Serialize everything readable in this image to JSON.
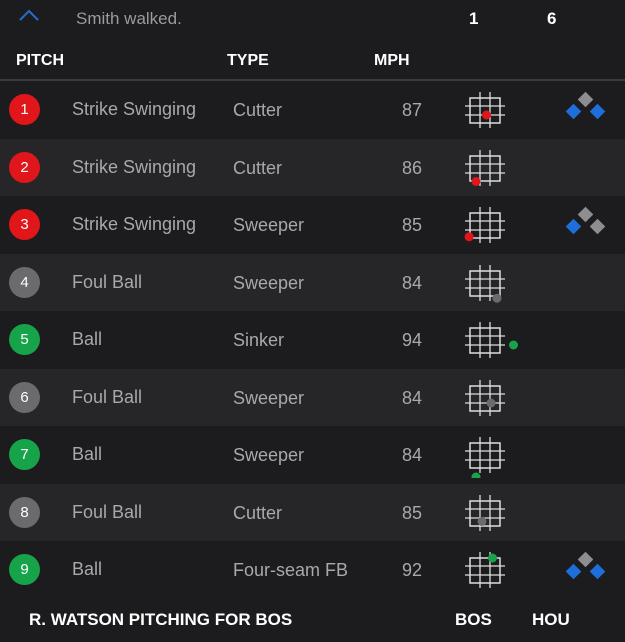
{
  "summary": {
    "text": "Smith walked.",
    "score_bos": "1",
    "score_hou": "6",
    "expand_icon": "chevron-up-icon",
    "accent": "#1f6fd1"
  },
  "headers": {
    "pitch": "PITCH",
    "type": "TYPE",
    "mph": "MPH"
  },
  "colors": {
    "strike": "#e0161b",
    "foul": "#6b6b6e",
    "ball": "#17a34a",
    "base_occupied": "#1e6fd9",
    "base_empty": "#8e8e92"
  },
  "pitches": [
    {
      "num": "1",
      "result": "Strike Swinging",
      "type": "Cutter",
      "mph": "87",
      "kind": "strike",
      "bases": {
        "first": true,
        "second": false,
        "third": true
      }
    },
    {
      "num": "2",
      "result": "Strike Swinging",
      "type": "Cutter",
      "mph": "86",
      "kind": "strike"
    },
    {
      "num": "3",
      "result": "Strike Swinging",
      "type": "Sweeper",
      "mph": "85",
      "kind": "strike",
      "loc": [
        -0.03,
        0.7
      ],
      "bases": {
        "first": false,
        "second": false,
        "third": true
      }
    },
    {
      "num": "4",
      "result": "Foul Ball",
      "type": "Sweeper",
      "mph": "84",
      "kind": "foul"
    },
    {
      "num": "5",
      "result": "Ball",
      "type": "Sinker",
      "mph": "94",
      "kind": "ball",
      "loc": [
        1.45,
        0.5
      ]
    },
    {
      "num": "6",
      "result": "Foul Ball",
      "type": "Sweeper",
      "mph": "84",
      "kind": "foul"
    },
    {
      "num": "7",
      "result": "Ball",
      "type": "Sweeper",
      "mph": "84",
      "kind": "ball",
      "loc": [
        0.2,
        1.0
      ]
    },
    {
      "num": "8",
      "result": "Foul Ball",
      "type": "Cutter",
      "mph": "85",
      "kind": "foul"
    },
    {
      "num": "9",
      "result": "Ball",
      "type": "Four-seam FB",
      "mph": "92",
      "kind": "ball",
      "loc": [
        0.75,
        0.0
      ],
      "bases": {
        "first": true,
        "second": false,
        "third": true
      }
    }
  ],
  "footer": {
    "title": "R. WATSON PITCHING FOR BOS",
    "team1": "BOS",
    "team2": "HOU"
  }
}
